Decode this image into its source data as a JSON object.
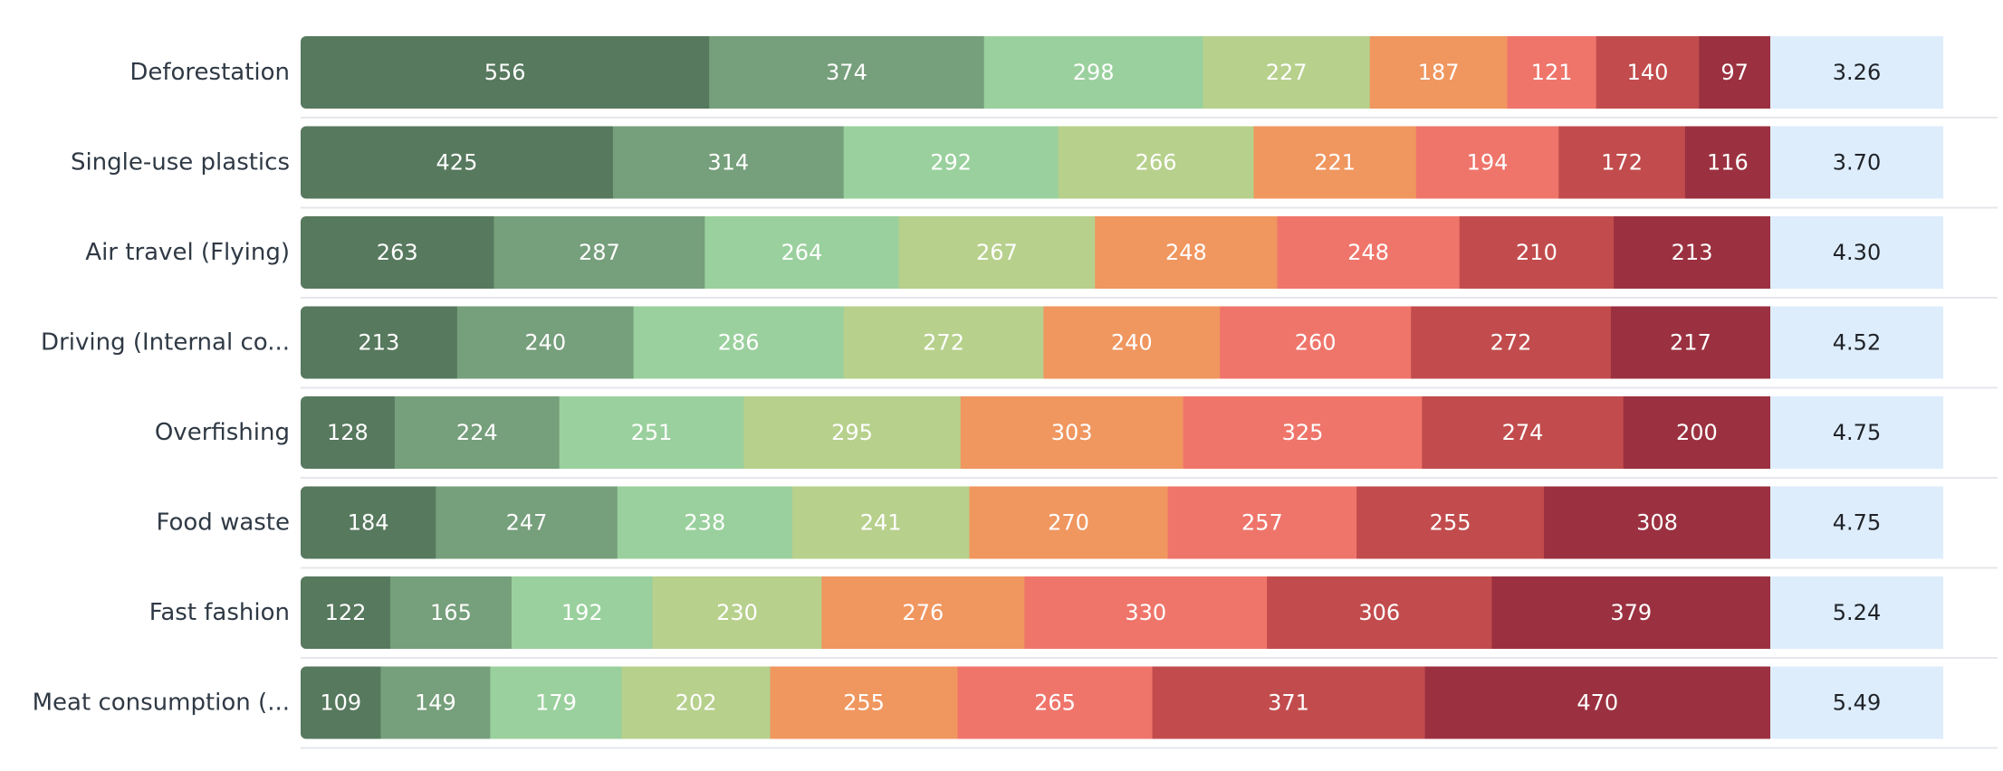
{
  "chart_data": {
    "type": "bar",
    "orientation": "horizontal",
    "stacked": true,
    "normalized": true,
    "categories": [
      "Deforestation",
      "Single-use plastics",
      "Air travel (Flying)",
      "Driving (Internal co...",
      "Overfishing",
      "Food waste",
      "Fast fashion",
      "Meat consumption (..."
    ],
    "series": [
      {
        "color": "#57795e",
        "values": [
          556,
          425,
          263,
          213,
          128,
          184,
          122,
          109
        ]
      },
      {
        "color": "#769f7b",
        "values": [
          374,
          314,
          287,
          240,
          224,
          247,
          165,
          149
        ]
      },
      {
        "color": "#9ad09d",
        "values": [
          298,
          292,
          264,
          286,
          251,
          238,
          192,
          179
        ]
      },
      {
        "color": "#b7d08c",
        "values": [
          227,
          266,
          267,
          272,
          295,
          241,
          230,
          202
        ]
      },
      {
        "color": "#f0965f",
        "values": [
          187,
          221,
          248,
          240,
          303,
          270,
          276,
          255
        ]
      },
      {
        "color": "#ef756b",
        "values": [
          121,
          194,
          248,
          260,
          325,
          257,
          330,
          265
        ]
      },
      {
        "color": "#c24c4d",
        "values": [
          140,
          172,
          210,
          272,
          274,
          255,
          306,
          371
        ]
      },
      {
        "color": "#9b3140",
        "values": [
          97,
          116,
          213,
          217,
          200,
          308,
          379,
          470
        ]
      }
    ],
    "averages": [
      "3.26",
      "3.70",
      "4.30",
      "4.52",
      "4.75",
      "4.75",
      "5.24",
      "5.49"
    ],
    "average_box_color": "#deedfc",
    "separator_color": "#e4e7eb",
    "title": "",
    "xlabel": "",
    "ylabel": "",
    "legend": "none",
    "grid": false
  }
}
